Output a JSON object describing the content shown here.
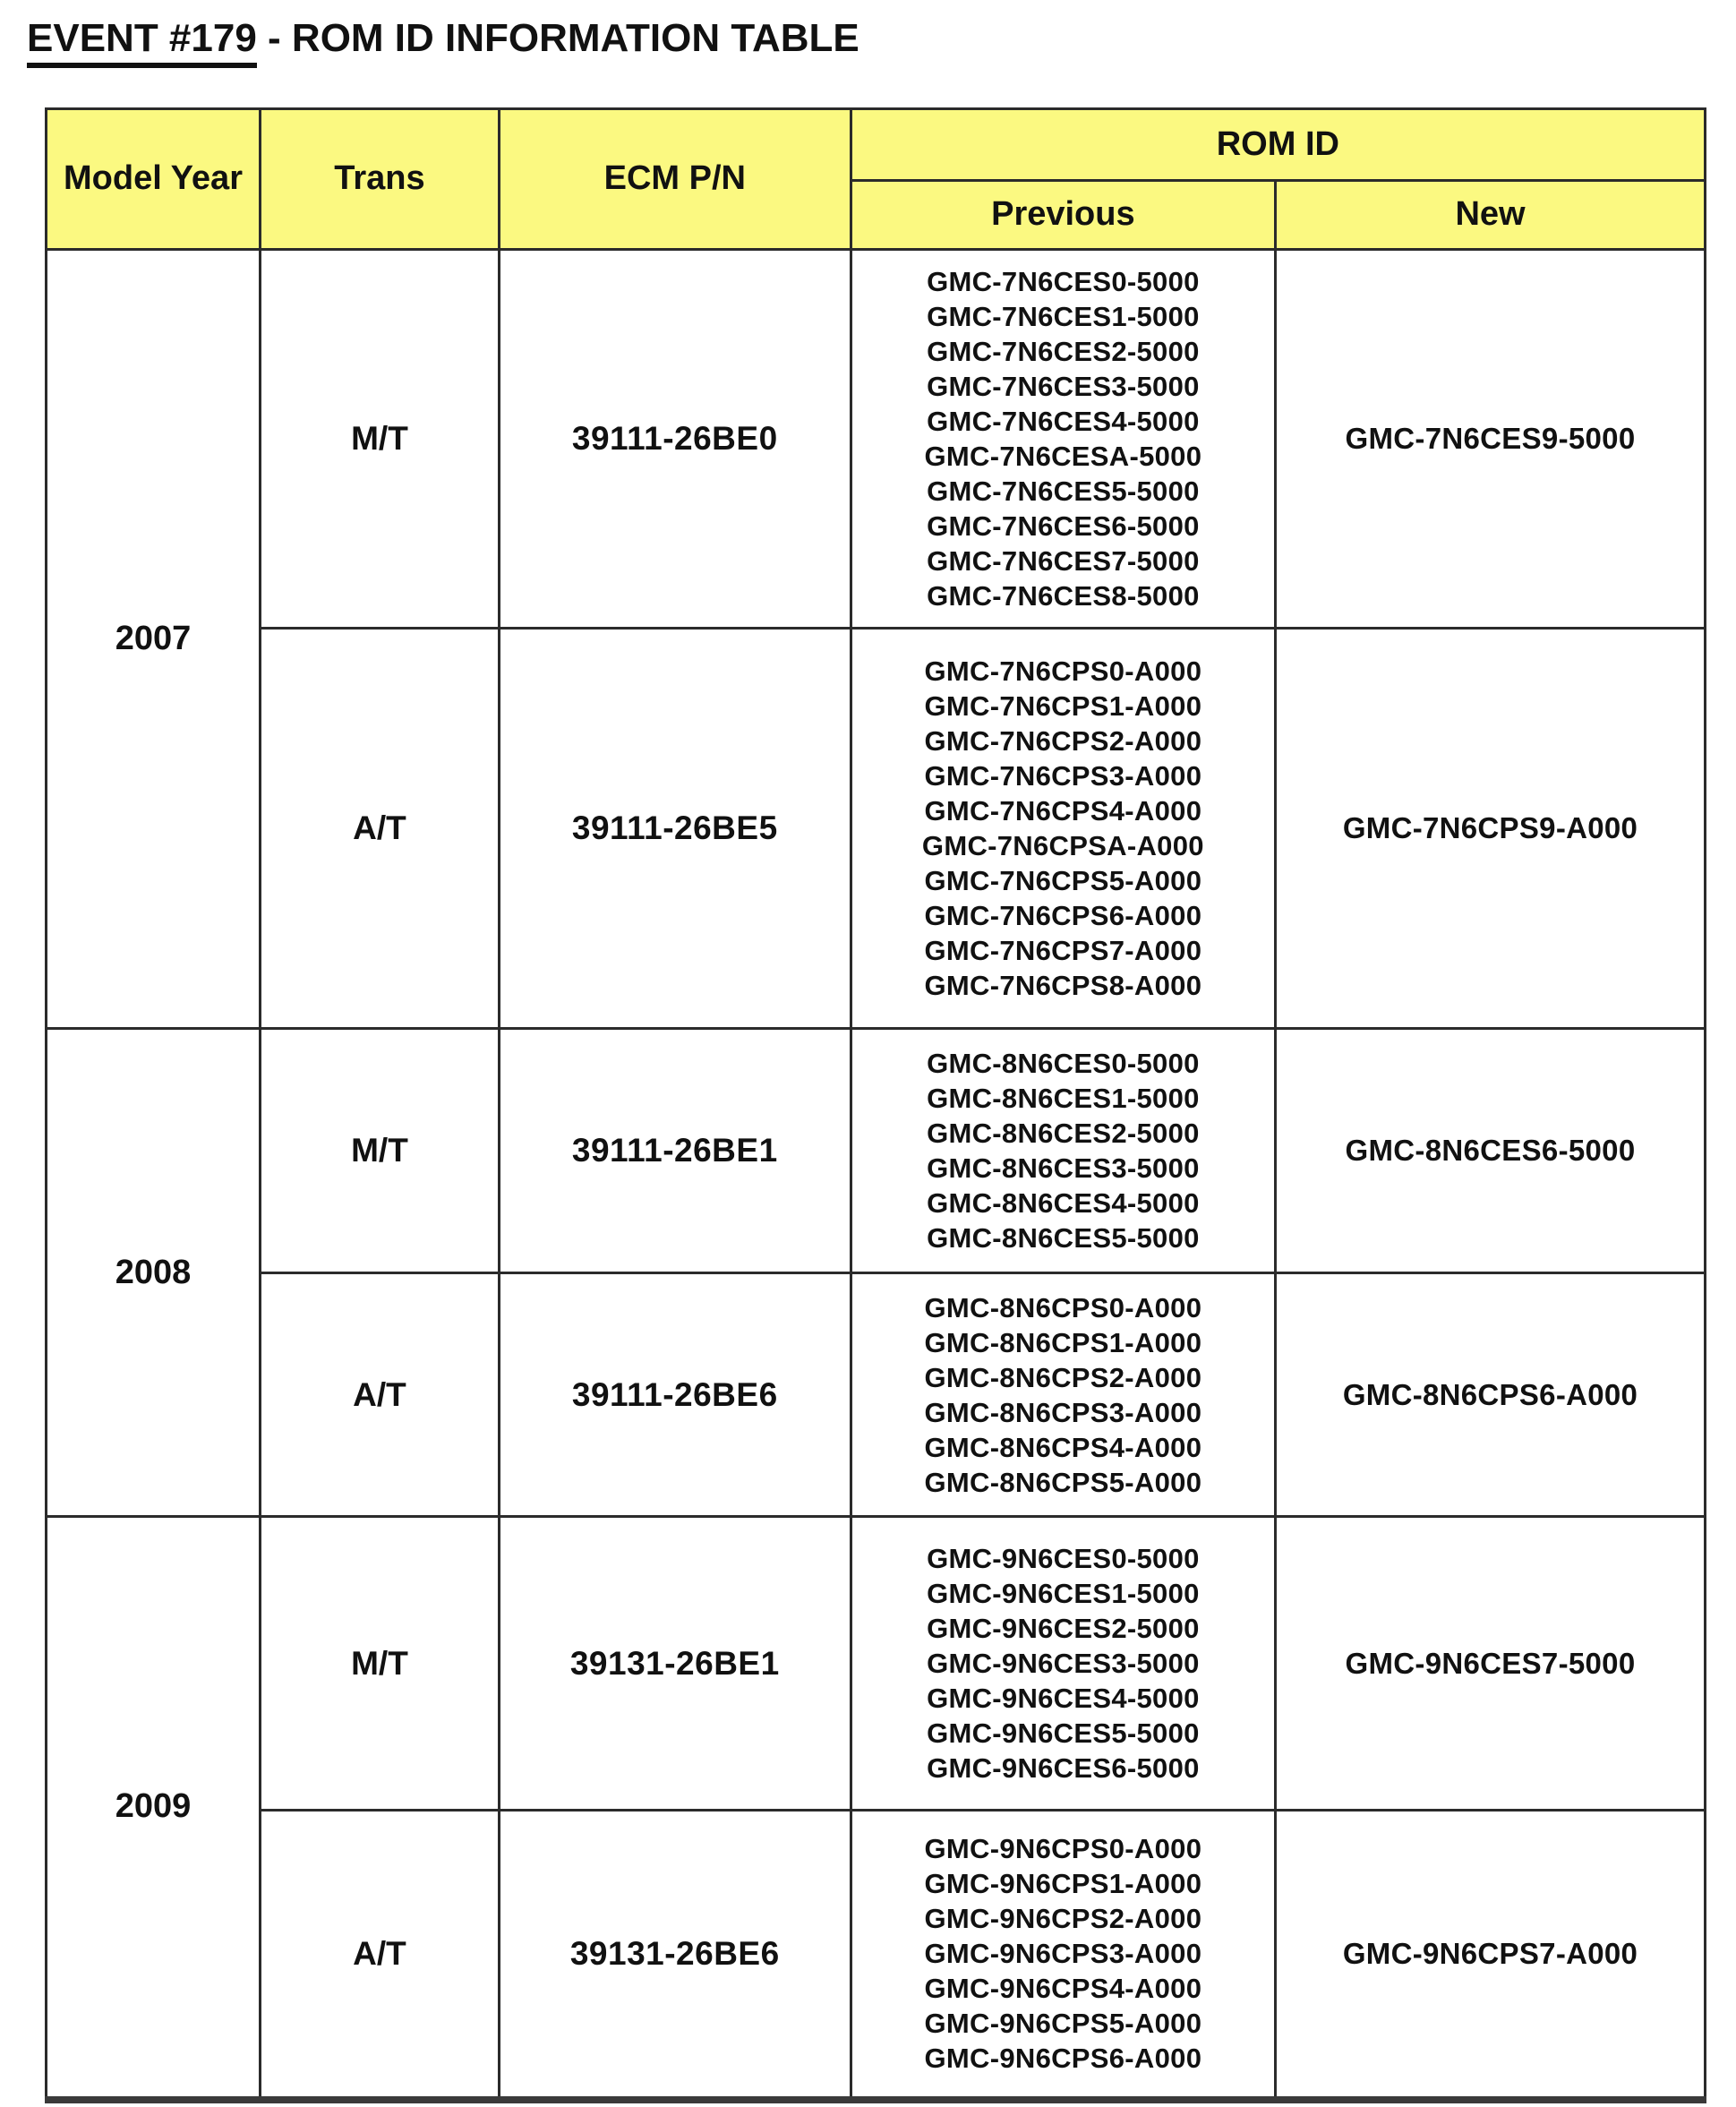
{
  "page": {
    "title_underlined": "EVENT #179",
    "title_rest": " - ROM ID INFORMATION TABLE"
  },
  "colors": {
    "header_bg": "#FBF981",
    "border": "#2b2b2b",
    "text": "#111111",
    "page_bg": "#ffffff"
  },
  "table": {
    "headers": {
      "model_year": "Model Year",
      "trans": "Trans",
      "ecm_pn": "ECM P/N",
      "rom_id": "ROM ID",
      "previous": "Previous",
      "new": "New"
    },
    "rows": [
      {
        "year": "2007",
        "trans": "M/T",
        "ecm": "39111-26BE0",
        "previous": [
          "GMC-7N6CES0-5000",
          "GMC-7N6CES1-5000",
          "GMC-7N6CES2-5000",
          "GMC-7N6CES3-5000",
          "GMC-7N6CES4-5000",
          "GMC-7N6CESA-5000",
          "GMC-7N6CES5-5000",
          "GMC-7N6CES6-5000",
          "GMC-7N6CES7-5000",
          "GMC-7N6CES8-5000"
        ],
        "new": "GMC-7N6CES9-5000"
      },
      {
        "trans": "A/T",
        "ecm": "39111-26BE5",
        "previous": [
          "GMC-7N6CPS0-A000",
          "GMC-7N6CPS1-A000",
          "GMC-7N6CPS2-A000",
          "GMC-7N6CPS3-A000",
          "GMC-7N6CPS4-A000",
          "GMC-7N6CPSA-A000",
          "GMC-7N6CPS5-A000",
          "GMC-7N6CPS6-A000",
          "GMC-7N6CPS7-A000",
          "GMC-7N6CPS8-A000"
        ],
        "new": "GMC-7N6CPS9-A000"
      },
      {
        "year": "2008",
        "trans": "M/T",
        "ecm": "39111-26BE1",
        "previous": [
          "GMC-8N6CES0-5000",
          "GMC-8N6CES1-5000",
          "GMC-8N6CES2-5000",
          "GMC-8N6CES3-5000",
          "GMC-8N6CES4-5000",
          "GMC-8N6CES5-5000"
        ],
        "new": "GMC-8N6CES6-5000"
      },
      {
        "trans": "A/T",
        "ecm": "39111-26BE6",
        "previous": [
          "GMC-8N6CPS0-A000",
          "GMC-8N6CPS1-A000",
          "GMC-8N6CPS2-A000",
          "GMC-8N6CPS3-A000",
          "GMC-8N6CPS4-A000",
          "GMC-8N6CPS5-A000"
        ],
        "new": "GMC-8N6CPS6-A000"
      },
      {
        "year": "2009",
        "trans": "M/T",
        "ecm": "39131-26BE1",
        "previous": [
          "GMC-9N6CES0-5000",
          "GMC-9N6CES1-5000",
          "GMC-9N6CES2-5000",
          "GMC-9N6CES3-5000",
          "GMC-9N6CES4-5000",
          "GMC-9N6CES5-5000",
          "GMC-9N6CES6-5000"
        ],
        "new": "GMC-9N6CES7-5000"
      },
      {
        "trans": "A/T",
        "ecm": "39131-26BE6",
        "previous": [
          "GMC-9N6CPS0-A000",
          "GMC-9N6CPS1-A000",
          "GMC-9N6CPS2-A000",
          "GMC-9N6CPS3-A000",
          "GMC-9N6CPS4-A000",
          "GMC-9N6CPS5-A000",
          "GMC-9N6CPS6-A000"
        ],
        "new": "GMC-9N6CPS7-A000"
      }
    ]
  }
}
